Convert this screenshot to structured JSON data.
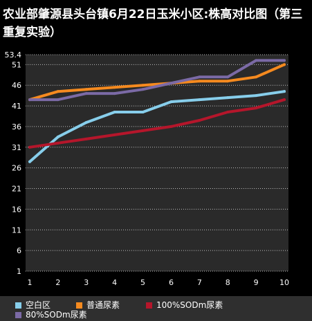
{
  "chart_data": {
    "type": "line",
    "title": "农业部肇源县头台镇6月22日玉米小区:株高对比图（第三重复实验）",
    "x": [
      1,
      2,
      3,
      4,
      5,
      6,
      7,
      8,
      9,
      10
    ],
    "x_ticks": [
      "1",
      "2",
      "3",
      "4",
      "5",
      "6",
      "7",
      "8",
      "9",
      "10"
    ],
    "y_ticks": [
      "1",
      "6",
      "11",
      "16",
      "21",
      "26",
      "31",
      "36",
      "41",
      "46",
      "51",
      "53.4"
    ],
    "ylim": [
      1,
      53.4
    ],
    "grid": true,
    "legend_position": "bottom",
    "background": "#000000",
    "plot_background": "#2a2a2a",
    "series": [
      {
        "name": "空白区",
        "color": "#87ceeb",
        "values": [
          27.5,
          33.5,
          37.0,
          39.5,
          39.5,
          42.0,
          42.5,
          43.0,
          43.5,
          44.5
        ]
      },
      {
        "name": "普通尿素",
        "color": "#f58a1f",
        "values": [
          42.5,
          44.5,
          45.0,
          45.5,
          46.0,
          46.5,
          47.0,
          47.0,
          48.0,
          51.0
        ]
      },
      {
        "name": "100%SODm尿素",
        "color": "#b5162b",
        "values": [
          31.0,
          32.0,
          33.0,
          34.0,
          35.0,
          36.0,
          37.5,
          39.5,
          40.5,
          42.5
        ]
      },
      {
        "name": "80%SODm尿素",
        "color": "#7b6aa6",
        "values": [
          42.5,
          42.5,
          44.0,
          44.0,
          45.0,
          46.5,
          48.0,
          48.0,
          52.0,
          52.0
        ]
      }
    ]
  }
}
